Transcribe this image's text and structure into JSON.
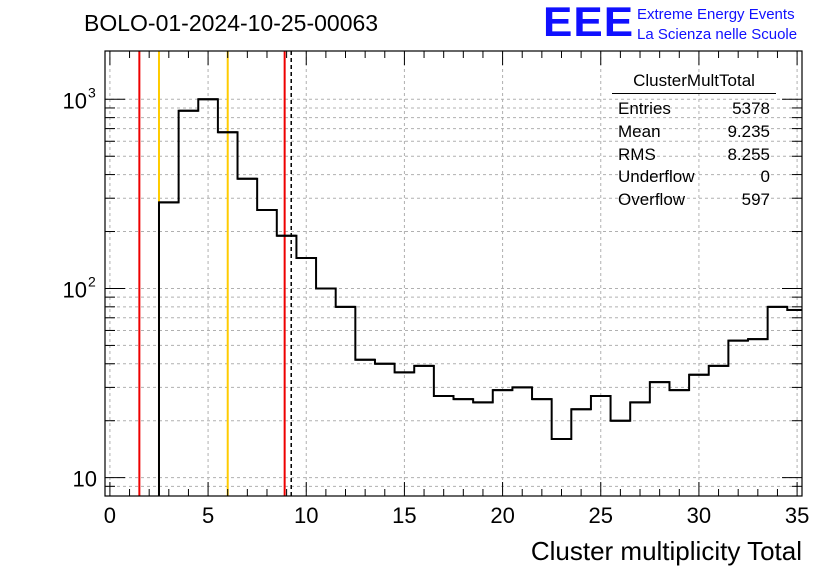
{
  "title": "BOLO-01-2024-10-25-00063",
  "logo": {
    "mark": "EEE",
    "line1": "Extreme Energy Events",
    "line2": "La Scienza nelle Scuole",
    "color": "#1010ff"
  },
  "stats": {
    "title": "ClusterMultTotal",
    "rows": [
      {
        "label": "Entries",
        "value": "5378"
      },
      {
        "label": "Mean",
        "value": "9.235"
      },
      {
        "label": "RMS",
        "value": "8.255"
      },
      {
        "label": "Underflow",
        "value": "0"
      },
      {
        "label": "Overflow",
        "value": "597"
      }
    ]
  },
  "chart_data": {
    "type": "histogram",
    "xlabel": "Cluster multiplicity Total",
    "ylabel": "",
    "xlim": [
      -0.25,
      35.25
    ],
    "ylim": [
      8,
      1800
    ],
    "log_y": true,
    "grid": true,
    "bin_width": 1,
    "bins": [
      {
        "x0": 2.5,
        "x1": 3.5,
        "count": 285
      },
      {
        "x0": 3.5,
        "x1": 4.5,
        "count": 870
      },
      {
        "x0": 4.5,
        "x1": 5.5,
        "count": 1000
      },
      {
        "x0": 5.5,
        "x1": 6.5,
        "count": 670
      },
      {
        "x0": 6.5,
        "x1": 7.5,
        "count": 380
      },
      {
        "x0": 7.5,
        "x1": 8.5,
        "count": 260
      },
      {
        "x0": 8.5,
        "x1": 9.5,
        "count": 190
      },
      {
        "x0": 9.5,
        "x1": 10.5,
        "count": 145
      },
      {
        "x0": 10.5,
        "x1": 11.5,
        "count": 100
      },
      {
        "x0": 11.5,
        "x1": 12.5,
        "count": 80
      },
      {
        "x0": 12.5,
        "x1": 13.5,
        "count": 42
      },
      {
        "x0": 13.5,
        "x1": 14.5,
        "count": 40
      },
      {
        "x0": 14.5,
        "x1": 15.5,
        "count": 36
      },
      {
        "x0": 15.5,
        "x1": 16.5,
        "count": 39
      },
      {
        "x0": 16.5,
        "x1": 17.5,
        "count": 27
      },
      {
        "x0": 17.5,
        "x1": 18.5,
        "count": 26
      },
      {
        "x0": 18.5,
        "x1": 19.5,
        "count": 25
      },
      {
        "x0": 19.5,
        "x1": 20.5,
        "count": 29
      },
      {
        "x0": 20.5,
        "x1": 21.5,
        "count": 30
      },
      {
        "x0": 21.5,
        "x1": 22.5,
        "count": 26
      },
      {
        "x0": 22.5,
        "x1": 23.5,
        "count": 16
      },
      {
        "x0": 23.5,
        "x1": 24.5,
        "count": 23
      },
      {
        "x0": 24.5,
        "x1": 25.5,
        "count": 27
      },
      {
        "x0": 25.5,
        "x1": 26.5,
        "count": 20
      },
      {
        "x0": 26.5,
        "x1": 27.5,
        "count": 25
      },
      {
        "x0": 27.5,
        "x1": 28.5,
        "count": 32
      },
      {
        "x0": 28.5,
        "x1": 29.5,
        "count": 29
      },
      {
        "x0": 29.5,
        "x1": 30.5,
        "count": 35
      },
      {
        "x0": 30.5,
        "x1": 31.5,
        "count": 39
      },
      {
        "x0": 31.5,
        "x1": 32.5,
        "count": 53
      },
      {
        "x0": 32.5,
        "x1": 33.5,
        "count": 54
      },
      {
        "x0": 33.5,
        "x1": 34.5,
        "count": 80
      },
      {
        "x0": 34.5,
        "x1": 35.25,
        "count": 77
      }
    ],
    "x_ticks": [
      0,
      5,
      10,
      15,
      20,
      25,
      30,
      35
    ],
    "x_tick_labels": [
      "0",
      "5",
      "10",
      "15",
      "20",
      "25",
      "30",
      "35"
    ],
    "y_ticks": [
      10,
      100,
      1000
    ],
    "y_tick_labels": [
      {
        "base": "10",
        "exp": ""
      },
      {
        "base": "10",
        "exp": "2"
      },
      {
        "base": "10",
        "exp": "3"
      }
    ],
    "vertical_lines": [
      {
        "x": 1.5,
        "color": "#ee0000",
        "style": "solid"
      },
      {
        "x": 2.5,
        "color": "#ffcc00",
        "style": "solid"
      },
      {
        "x": 6.0,
        "color": "#ffcc00",
        "style": "solid"
      },
      {
        "x": 8.9,
        "color": "#ee0000",
        "style": "solid"
      },
      {
        "x": 9.235,
        "color": "#000000",
        "style": "dashed"
      }
    ]
  }
}
